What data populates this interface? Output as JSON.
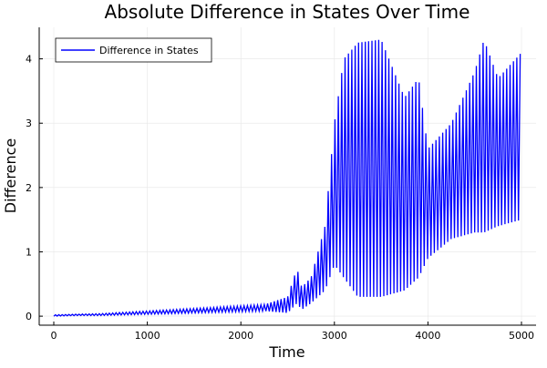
{
  "chart_data": {
    "type": "line",
    "title": "Absolute Difference in States Over Time",
    "xlabel": "Time",
    "ylabel": "Difference",
    "xlim": [
      -156,
      5156
    ],
    "ylim": [
      -0.14,
      4.49
    ],
    "xticks": [
      0,
      1000,
      2000,
      3000,
      4000,
      5000
    ],
    "xtick_labels": [
      "0",
      "1000",
      "2000",
      "3000",
      "4000",
      "5000"
    ],
    "yticks": [
      0,
      1,
      2,
      3,
      4
    ],
    "ytick_labels": [
      "0",
      "1",
      "2",
      "3",
      "4"
    ],
    "grid": true,
    "legend_position": "top-left",
    "series": [
      {
        "name": "Difference in States",
        "color": "#0000ff",
        "oscillation_period": 36,
        "envelope_x": [
          0,
          250,
          500,
          750,
          1000,
          1250,
          1500,
          1750,
          2000,
          2250,
          2500,
          2600,
          2650,
          2750,
          2900,
          3000,
          3100,
          3250,
          3500,
          3750,
          3900,
          4000,
          4250,
          4500,
          4600,
          4750,
          5000
        ],
        "envelope_upper": [
          0.02,
          0.03,
          0.04,
          0.06,
          0.08,
          0.1,
          0.12,
          0.14,
          0.16,
          0.18,
          0.3,
          0.75,
          0.45,
          0.6,
          1.4,
          3.0,
          4.0,
          4.25,
          4.3,
          3.4,
          3.7,
          2.6,
          3.0,
          3.8,
          4.3,
          3.7,
          4.1
        ],
        "envelope_lower": [
          0.0,
          0.01,
          0.01,
          0.02,
          0.03,
          0.04,
          0.05,
          0.06,
          0.07,
          0.08,
          0.05,
          0.2,
          0.1,
          0.2,
          0.4,
          0.8,
          0.6,
          0.3,
          0.3,
          0.4,
          0.6,
          0.9,
          1.2,
          1.3,
          1.3,
          1.4,
          1.5
        ]
      }
    ]
  }
}
